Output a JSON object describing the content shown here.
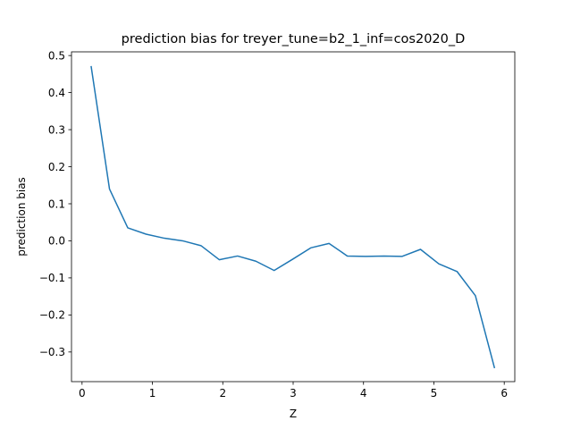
{
  "chart_data": {
    "type": "line",
    "title": "prediction bias for treyer_tune=b2_1_inf=cos2020_D",
    "xlabel": "Z",
    "ylabel": "prediction bias",
    "xlim": [
      -0.15,
      6.15
    ],
    "ylim": [
      -0.38,
      0.51
    ],
    "grid": false,
    "line_color": "#1f77b4",
    "xticks": [
      0,
      1,
      2,
      3,
      4,
      5,
      6
    ],
    "xtick_labels": [
      "0",
      "1",
      "2",
      "3",
      "4",
      "5",
      "6"
    ],
    "yticks": [
      -0.3,
      -0.2,
      -0.1,
      0.0,
      0.1,
      0.2,
      0.3,
      0.4,
      0.5
    ],
    "ytick_labels": [
      "−0.3",
      "−0.2",
      "−0.1",
      "0.0",
      "0.1",
      "0.2",
      "0.3",
      "0.4",
      "0.5"
    ],
    "series": [
      {
        "x": [
          0.13,
          0.39,
          0.65,
          0.91,
          1.17,
          1.43,
          1.69,
          1.95,
          2.21,
          2.47,
          2.73,
          2.99,
          3.25,
          3.51,
          3.77,
          4.03,
          4.29,
          4.55,
          4.81,
          5.07,
          5.33,
          5.59,
          5.86
        ],
        "y": [
          0.47,
          0.14,
          0.035,
          0.018,
          0.007,
          0.0,
          -0.013,
          -0.051,
          -0.041,
          -0.055,
          -0.08,
          -0.05,
          -0.019,
          -0.007,
          -0.041,
          -0.042,
          -0.041,
          -0.042,
          -0.023,
          -0.062,
          -0.083,
          -0.148,
          -0.342
        ]
      }
    ]
  }
}
